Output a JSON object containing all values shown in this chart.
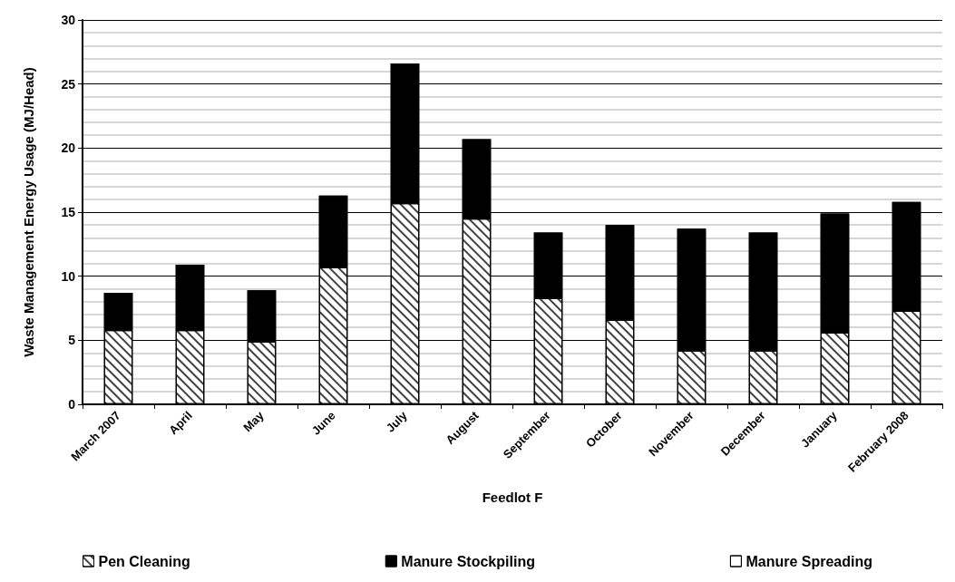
{
  "chart_data": {
    "type": "bar",
    "stacked": true,
    "xlabel": "Feedlot F",
    "ylabel": "Waste Management Energy Usage (MJ/Head)",
    "categories": [
      "March 2007",
      "April",
      "May",
      "June",
      "July",
      "August",
      "September",
      "October",
      "November",
      "December",
      "January",
      "February 2008"
    ],
    "series": [
      {
        "name": "Pen Cleaning",
        "color": "#ffffff",
        "values": [
          5.8,
          5.8,
          4.9,
          10.7,
          15.7,
          14.5,
          8.3,
          6.6,
          4.2,
          4.2,
          5.6,
          7.3
        ]
      },
      {
        "name": "Manure Stockpiling",
        "color": "#000000",
        "values": [
          2.9,
          5.1,
          4.0,
          5.6,
          10.9,
          6.2,
          5.1,
          7.4,
          9.5,
          9.2,
          9.3,
          8.5
        ]
      },
      {
        "name": "Manure Spreading",
        "color": "#ffffff",
        "values": [
          0,
          0,
          0,
          0,
          0,
          0,
          0,
          0,
          0,
          0,
          0,
          0
        ]
      }
    ],
    "ylim": [
      0,
      30
    ],
    "yticks": [
      0,
      5,
      10,
      15,
      20,
      25,
      30
    ],
    "grid": "y",
    "legend": "bottom"
  }
}
